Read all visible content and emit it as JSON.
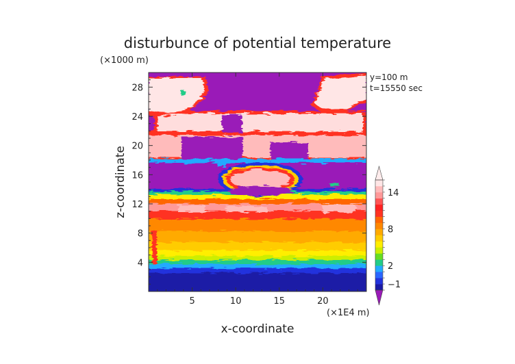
{
  "chart_data": {
    "type": "heatmap",
    "title": "disturbunce of potential temperature",
    "xlabel": "x-coordinate",
    "ylabel": "z-coordinate",
    "x_unit": "(×1E4 m)",
    "y_unit": "(×1000 m)",
    "annotations": [
      "y=100 m",
      "t=15550 sec"
    ],
    "xlim": [
      0,
      25
    ],
    "ylim": [
      0,
      30
    ],
    "x_ticks": [
      5,
      10,
      15,
      20
    ],
    "y_ticks": [
      4,
      8,
      12,
      16,
      20,
      24,
      28
    ],
    "colorbar": {
      "labels": [
        {
          "value": -1,
          "text": "−1"
        },
        {
          "value": 2,
          "text": "2"
        },
        {
          "value": 8,
          "text": "8"
        },
        {
          "value": 14,
          "text": "14"
        }
      ],
      "levels": [
        -2,
        -1,
        0,
        1,
        2,
        3,
        4,
        5,
        6,
        7,
        8,
        9,
        10,
        11,
        12,
        13,
        14,
        15,
        16
      ],
      "colors": [
        "#1a1aa6",
        "#2233dd",
        "#2a66ff",
        "#22aaff",
        "#22cc88",
        "#66dd22",
        "#ccee00",
        "#ffee00",
        "#ffcc00",
        "#ffaa00",
        "#ff8800",
        "#ff6600",
        "#ff3322",
        "#ff2222",
        "#ff5555",
        "#ff9999",
        "#ffbbbb",
        "#ffe6e6"
      ],
      "under_color": "#9a1ab8",
      "over_color": "#ffecec",
      "extend": "both"
    },
    "grid": false
  }
}
